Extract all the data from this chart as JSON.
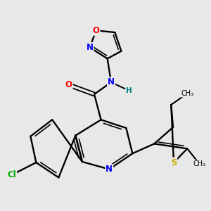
{
  "background_color": "#e8e8e8",
  "atom_colors": {
    "C": "#000000",
    "N": "#0000ff",
    "O": "#ff0000",
    "S": "#ccaa00",
    "Cl": "#00aa00",
    "H": "#008080"
  },
  "figsize": [
    3.0,
    3.0
  ],
  "dpi": 100
}
